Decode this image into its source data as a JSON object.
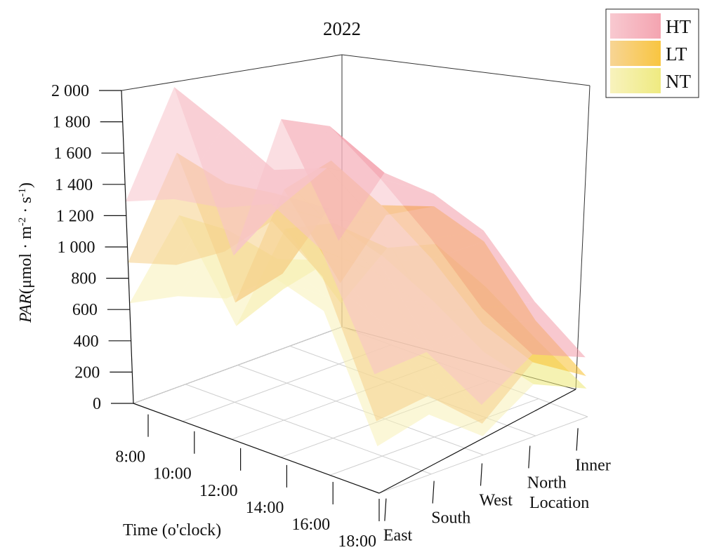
{
  "chart_data": {
    "type": "3d-surface",
    "title": "2022",
    "zlabel_italic": "PAR",
    "zlabel_unit": "(μmol · m",
    "zlabel_exp1": "-2",
    "zlabel_mid": " · s",
    "zlabel_exp2": "-1",
    "zlabel_close": ")",
    "xlabel": "Time (o'clock)",
    "ylabel": "Location",
    "x_ticks": [
      "8:00",
      "10:00",
      "12:00",
      "14:00",
      "16:00",
      "18:00"
    ],
    "y_ticks": [
      "East",
      "South",
      "West",
      "North",
      "Inner"
    ],
    "z_ticks": [
      "0",
      "200",
      "400",
      "600",
      "800",
      "1 000",
      "1 200",
      "1 400",
      "1 600",
      "1 800",
      "2 000"
    ],
    "z_values": [
      0,
      200,
      400,
      600,
      800,
      1000,
      1200,
      1400,
      1600,
      1800,
      2000
    ],
    "zlim": [
      0,
      2000
    ],
    "grid": "floor",
    "legend_position": "top-right",
    "series": [
      {
        "name": "HT",
        "colors": [
          "#f7c3cb",
          "#f39aa8"
        ],
        "values": [
          [
            1290,
            1900,
            700,
            1450,
            550
          ],
          [
            1420,
            1760,
            1130,
            1520,
            1100
          ],
          [
            1480,
            1600,
            1490,
            1300,
            1080
          ],
          [
            1620,
            1400,
            1250,
            1030,
            960
          ],
          [
            1440,
            1180,
            800,
            700,
            620
          ],
          [
            760,
            780,
            320,
            520,
            380
          ]
        ]
      },
      {
        "name": "LT",
        "colors": [
          "#f6d089",
          "#f8bf2c"
        ],
        "values": [
          [
            900,
            1480,
            400,
            1000,
            280
          ],
          [
            1000,
            1400,
            700,
            1300,
            830
          ],
          [
            1200,
            1450,
            1230,
            1130,
            1000
          ],
          [
            1510,
            1150,
            1000,
            900,
            890
          ],
          [
            1270,
            880,
            580,
            600,
            500
          ],
          [
            460,
            500,
            200,
            470,
            260
          ]
        ]
      },
      {
        "name": "NT",
        "colors": [
          "#f7f1b6",
          "#ede873"
        ],
        "values": [
          [
            640,
            1080,
            250,
            750,
            150
          ],
          [
            800,
            1100,
            600,
            900,
            620
          ],
          [
            900,
            1030,
            900,
            800,
            760
          ],
          [
            1150,
            900,
            750,
            630,
            600
          ],
          [
            1050,
            700,
            420,
            420,
            380
          ],
          [
            300,
            380,
            120,
            330,
            180
          ]
        ]
      }
    ]
  }
}
